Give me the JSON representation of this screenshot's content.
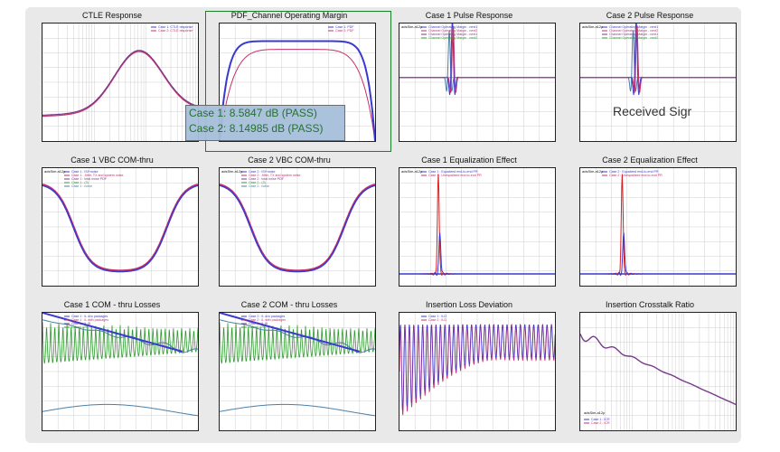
{
  "panels": [
    {
      "title": "CTLE Response",
      "kind": "ctle",
      "legend": [
        "Case 1: CTLE response",
        "Case 2: CTLE response"
      ]
    },
    {
      "title": "PDF_Channel Operating Margin",
      "kind": "pdf",
      "legend": [
        "Case 1: PDF",
        "Case 2: PDF"
      ]
    },
    {
      "title": "Case 1   Pulse Response",
      "kind": "pulse1",
      "legend": [
        "Channel Operating Margin - next1",
        "Channel Operating Margin - next2",
        "Channel Operating Margin - next1",
        "Channel Operating Margin - next2"
      ]
    },
    {
      "title": "Case 2   Pulse Response",
      "kind": "pulse2",
      "legend": [
        "Channel Operating Margin - next1",
        "Channel Operating Margin - next2",
        "Channel Operating Margin - next1",
        "Channel Operating Margin - next2"
      ]
    },
    {
      "title": "Case 1   VBC  COM-thru",
      "kind": "vbc",
      "legend": [
        "Case 1 : ISI+noise",
        "Case 1 : Jitter, TX and system noise",
        "Case 1 : total noise PDF",
        "Case 1 : (3)",
        "Case 1 : noise"
      ]
    },
    {
      "title": "Case 2   VBC COM-thru",
      "kind": "vbc",
      "legend": [
        "Case 2 : ISI+noise",
        "Case 2 : Jitter, TX and system noise",
        "Case 2 : total noise PDF",
        "Case 2 : (3)",
        "Case 2 : noise"
      ]
    },
    {
      "title": "Case 1   Equalization Effect",
      "kind": "eq1",
      "legend": [
        "Case 1 : Equalized end-to-end PR",
        "Case 1 : Unequalized end-to-end PR"
      ]
    },
    {
      "title": "Case 2   Equalization Effect",
      "kind": "eq2",
      "legend": [
        "Case 2 : Equalized end-to-end PR",
        "Case 2 : Unequalized end-to-end PR"
      ]
    },
    {
      "title": "Case 1    COM - thru Losses",
      "kind": "loss",
      "legend": [
        "Case 1 : IL w/o packages",
        "Case 1 : IL with packages",
        "Case 1 : IL fit",
        "Case 1 : RL"
      ]
    },
    {
      "title": "Case 2    COM - thru Losses",
      "kind": "loss",
      "legend": [
        "Case 2 : IL w/o packages",
        "Case 2 : IL with packages",
        "Case 2 : IL fit",
        "Case 2 : RL"
      ]
    },
    {
      "title": "Insertion Loss Deviation",
      "kind": "ild",
      "legend": [
        "Case 1 : ILD",
        "Case 2 : ILD"
      ]
    },
    {
      "title": "Insertion Crosstalk Ratio",
      "kind": "icr",
      "legend": [
        "Case 1 : ICR",
        "Case 2 : ICR"
      ]
    }
  ],
  "callout": {
    "case1": "Case 1: 8.5847 dB (PASS)",
    "case2": "Case 2: 8.14985 dB (PASS)"
  },
  "received_label": "Received Sigr",
  "marker_label": "adsSim.a12p",
  "colors": {
    "case1": "#3a3ad0",
    "case2": "#c4306a",
    "green": "#2e9a2e",
    "steel": "#4a7fa8",
    "red": "#d82020",
    "purple": "#7a3a8a"
  }
}
